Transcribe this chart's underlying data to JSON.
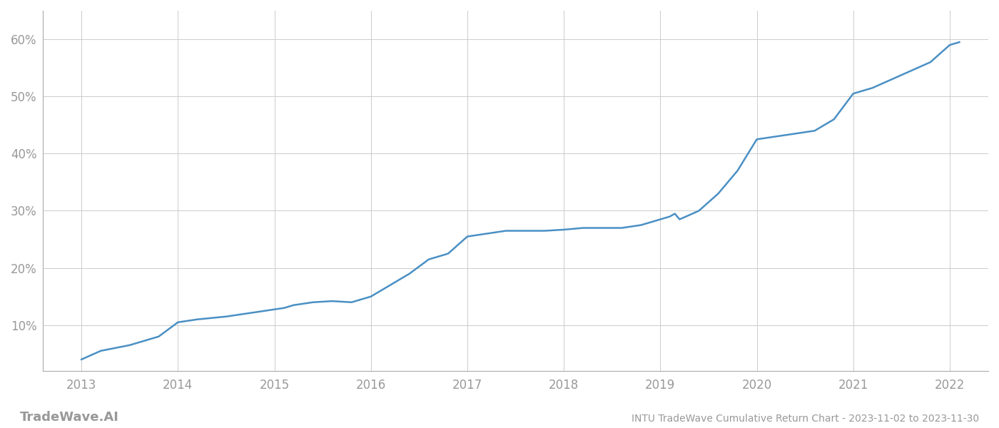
{
  "title": "INTU TradeWave Cumulative Return Chart - 2023-11-02 to 2023-11-30",
  "watermark": "TradeWave.AI",
  "line_color": "#4a90c4",
  "background_color": "#ffffff",
  "grid_color": "#cccccc",
  "x_values": [
    2013.0,
    2013.2,
    2013.5,
    2013.8,
    2014.0,
    2014.2,
    2014.5,
    2014.7,
    2014.9,
    2015.1,
    2015.2,
    2015.4,
    2015.6,
    2015.8,
    2016.0,
    2016.2,
    2016.4,
    2016.6,
    2016.8,
    2017.0,
    2017.2,
    2017.4,
    2017.6,
    2017.8,
    2018.0,
    2018.2,
    2018.4,
    2018.6,
    2018.8,
    2019.0,
    2019.1,
    2019.15,
    2019.2,
    2019.4,
    2019.6,
    2019.8,
    2020.0,
    2020.2,
    2020.4,
    2020.6,
    2020.8,
    2021.0,
    2021.2,
    2021.4,
    2021.6,
    2021.8,
    2022.0,
    2022.1
  ],
  "y_values": [
    4.0,
    5.5,
    6.5,
    8.0,
    10.5,
    11.0,
    11.5,
    12.0,
    12.5,
    13.0,
    13.5,
    14.0,
    14.2,
    14.0,
    15.0,
    17.0,
    19.0,
    21.5,
    22.5,
    25.5,
    26.0,
    26.5,
    26.5,
    26.5,
    26.7,
    27.0,
    27.0,
    27.0,
    27.5,
    28.5,
    29.0,
    29.5,
    28.5,
    30.0,
    33.0,
    37.0,
    42.5,
    43.0,
    43.5,
    44.0,
    46.0,
    50.5,
    51.5,
    53.0,
    54.5,
    56.0,
    59.0,
    59.5
  ],
  "xlim": [
    2012.6,
    2022.4
  ],
  "ylim": [
    2,
    65
  ],
  "yticks": [
    10,
    20,
    30,
    40,
    50,
    60
  ],
  "ytick_labels": [
    "10%",
    "20%",
    "30%",
    "40%",
    "50%",
    "60%"
  ],
  "xticks": [
    2013,
    2014,
    2015,
    2016,
    2017,
    2018,
    2019,
    2020,
    2021,
    2022
  ],
  "xtick_labels": [
    "2013",
    "2014",
    "2015",
    "2016",
    "2017",
    "2018",
    "2019",
    "2020",
    "2021",
    "2022"
  ],
  "tick_color": "#999999",
  "line_width": 1.8,
  "figsize": [
    14.0,
    6.0
  ],
  "dpi": 100
}
